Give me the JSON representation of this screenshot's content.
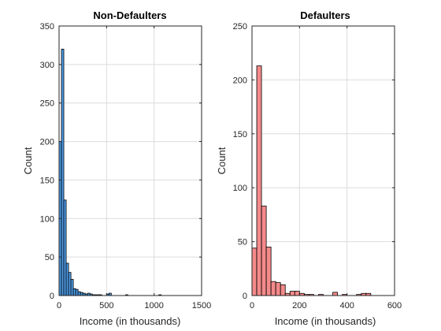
{
  "chart_data": [
    {
      "type": "bar",
      "title": "Non-Defaulters",
      "xlabel": "Income (in thousands)",
      "ylabel": "Count",
      "xlim": [
        0,
        1500
      ],
      "ylim": [
        0,
        350
      ],
      "xticks": [
        0,
        500,
        1000,
        1500
      ],
      "yticks": [
        0,
        50,
        100,
        150,
        200,
        250,
        300,
        350
      ],
      "grid": true,
      "bar_color": "#4d9be6",
      "bin_width": 25,
      "bin_edges_start": [
        0,
        25,
        50,
        75,
        100,
        125,
        150,
        175,
        200,
        225,
        250,
        275,
        300,
        325,
        350,
        375,
        400,
        425,
        450,
        475,
        500,
        525,
        550,
        575,
        600,
        625,
        650,
        675,
        700,
        725,
        750,
        775,
        800,
        825,
        850,
        875,
        900,
        925,
        950,
        975,
        1000,
        1025,
        1050,
        1075,
        1100
      ],
      "values": [
        200,
        320,
        124,
        42,
        30,
        21,
        9,
        8,
        5,
        4,
        3,
        2,
        3,
        2,
        1,
        1,
        1,
        1,
        0,
        0,
        2,
        3,
        0,
        0,
        0,
        0,
        0,
        0,
        1,
        0,
        0,
        0,
        0,
        0,
        0,
        0,
        0,
        0,
        0,
        0,
        0,
        0,
        1,
        0,
        0
      ]
    },
    {
      "type": "bar",
      "title": "Defaulters",
      "xlabel": "Income (in thousands)",
      "ylabel": "Count",
      "xlim": [
        0,
        600
      ],
      "ylim": [
        0,
        250
      ],
      "xticks": [
        0,
        200,
        400,
        600
      ],
      "yticks": [
        0,
        50,
        100,
        150,
        200,
        250
      ],
      "grid": true,
      "bar_color": "#f48a8a",
      "bin_width": 20,
      "bin_edges_start": [
        0,
        20,
        40,
        60,
        80,
        100,
        120,
        140,
        160,
        180,
        200,
        220,
        240,
        260,
        280,
        300,
        320,
        340,
        360,
        380,
        400,
        420,
        440,
        460,
        480
      ],
      "values": [
        44,
        213,
        83,
        45,
        13,
        12,
        10,
        2,
        4,
        4,
        2,
        1,
        1,
        0,
        1,
        0,
        0,
        3,
        0,
        1,
        0,
        0,
        1,
        2,
        2
      ]
    }
  ]
}
